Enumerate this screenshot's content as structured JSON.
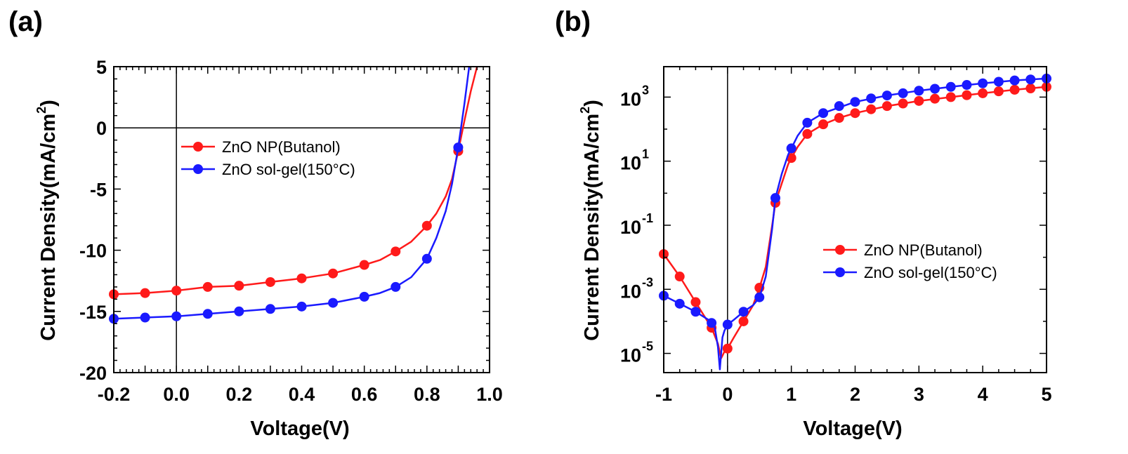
{
  "chart_data": [
    {
      "panel": "(a)",
      "type": "line",
      "xlabel": "Voltage(V)",
      "ylabel": "Current Density(mA/cm",
      "ylabel_sup": "2",
      "ylabel_tail": ")",
      "xlim": [
        -0.2,
        1.0
      ],
      "ylim": [
        -20,
        5
      ],
      "xticks": [
        "-0.2",
        "0.0",
        "0.2",
        "0.4",
        "0.6",
        "0.8",
        "1.0"
      ],
      "yticks": [
        "-20",
        "-15",
        "-10",
        "-5",
        "0",
        "5"
      ],
      "legend_position": "upper-middle",
      "series": [
        {
          "name": "ZnO NP(Butanol)",
          "color": "#ff1a1a",
          "marker_x": [
            -0.2,
            -0.1,
            0.0,
            0.1,
            0.2,
            0.3,
            0.4,
            0.5,
            0.6,
            0.7,
            0.8,
            0.9
          ],
          "marker_y": [
            -13.6,
            -13.5,
            -13.3,
            -13.0,
            -12.9,
            -12.6,
            -12.3,
            -11.9,
            -11.2,
            -10.1,
            -8.0,
            -1.9
          ],
          "curve_x": [
            -0.2,
            -0.1,
            0.0,
            0.1,
            0.2,
            0.3,
            0.4,
            0.5,
            0.6,
            0.65,
            0.7,
            0.75,
            0.8,
            0.83,
            0.86,
            0.88,
            0.9,
            0.92,
            0.94,
            0.96
          ],
          "curve_y": [
            -13.6,
            -13.5,
            -13.3,
            -13.0,
            -12.9,
            -12.6,
            -12.3,
            -11.9,
            -11.2,
            -10.8,
            -10.1,
            -9.3,
            -8.0,
            -7.0,
            -5.6,
            -4.2,
            -1.9,
            0.6,
            3.0,
            5.2
          ]
        },
        {
          "name": "ZnO sol-gel(150°C)",
          "color": "#1a1aff",
          "marker_x": [
            -0.2,
            -0.1,
            0.0,
            0.1,
            0.2,
            0.3,
            0.4,
            0.5,
            0.6,
            0.7,
            0.8,
            0.9
          ],
          "marker_y": [
            -15.6,
            -15.5,
            -15.4,
            -15.2,
            -15.0,
            -14.8,
            -14.6,
            -14.3,
            -13.8,
            -13.0,
            -10.7,
            -1.6
          ],
          "curve_x": [
            -0.2,
            -0.1,
            0.0,
            0.1,
            0.2,
            0.3,
            0.4,
            0.5,
            0.6,
            0.65,
            0.7,
            0.75,
            0.8,
            0.83,
            0.86,
            0.88,
            0.9,
            0.92,
            0.935
          ],
          "curve_y": [
            -15.6,
            -15.5,
            -15.4,
            -15.2,
            -15.0,
            -14.8,
            -14.6,
            -14.3,
            -13.8,
            -13.5,
            -13.0,
            -12.2,
            -10.7,
            -9.0,
            -6.8,
            -4.6,
            -1.6,
            2.0,
            5.2
          ]
        }
      ]
    },
    {
      "panel": "(b)",
      "type": "line",
      "yscale": "log",
      "xlabel": "Voltage(V)",
      "ylabel": "Current Density(mA/cm",
      "ylabel_sup": "2",
      "ylabel_tail": ")",
      "xlim": [
        -1,
        5
      ],
      "ylim_log10": [
        -5.6,
        3.95
      ],
      "xticks": [
        "-1",
        "0",
        "1",
        "2",
        "3",
        "4",
        "5"
      ],
      "yticks": [
        {
          "base": "10",
          "exp": "3",
          "log10": 3
        },
        {
          "base": "10",
          "exp": "1",
          "log10": 1
        },
        {
          "base": "10",
          "exp": "-1",
          "log10": -1
        },
        {
          "base": "10",
          "exp": "-3",
          "log10": -3
        },
        {
          "base": "10",
          "exp": "-5",
          "log10": -5
        }
      ],
      "legend_position": "lower-right",
      "series": [
        {
          "name": "ZnO NP(Butanol)",
          "color": "#ff1a1a",
          "marker_x": [
            -1.0,
            -0.75,
            -0.5,
            -0.25,
            0.0,
            0.25,
            0.5,
            0.75,
            1.0,
            1.25,
            1.5,
            1.75,
            2.0,
            2.25,
            2.5,
            2.75,
            3.0,
            3.25,
            3.5,
            3.75,
            4.0,
            4.25,
            4.5,
            4.75,
            5.0
          ],
          "marker_y_log10": [
            -1.9,
            -2.6,
            -3.4,
            -4.2,
            -4.85,
            -4.0,
            -2.95,
            -0.3,
            1.1,
            1.85,
            2.15,
            2.35,
            2.5,
            2.62,
            2.72,
            2.8,
            2.88,
            2.95,
            3.0,
            3.06,
            3.12,
            3.18,
            3.23,
            3.27,
            3.32
          ],
          "curve_x": [
            -1.0,
            -0.75,
            -0.5,
            -0.25,
            -0.15,
            -0.1,
            -0.05,
            0.0,
            0.1,
            0.25,
            0.4,
            0.5,
            0.6,
            0.7,
            0.75,
            0.85,
            0.95,
            1.0,
            1.1,
            1.25,
            1.5,
            1.75,
            2.0,
            2.5,
            3.0,
            3.5,
            4.0,
            4.5,
            5.0
          ],
          "curve_y_log10": [
            -1.9,
            -2.6,
            -3.4,
            -4.2,
            -4.7,
            -5.15,
            -4.95,
            -4.85,
            -4.5,
            -4.0,
            -3.5,
            -2.95,
            -2.3,
            -1.0,
            -0.3,
            0.3,
            0.9,
            1.1,
            1.45,
            1.85,
            2.15,
            2.35,
            2.5,
            2.72,
            2.88,
            3.0,
            3.12,
            3.23,
            3.32
          ]
        },
        {
          "name": "ZnO sol-gel(150°C)",
          "color": "#1a1aff",
          "marker_x": [
            -1.0,
            -0.75,
            -0.5,
            -0.25,
            0.0,
            0.25,
            0.5,
            0.75,
            1.0,
            1.25,
            1.5,
            1.75,
            2.0,
            2.25,
            2.5,
            2.75,
            3.0,
            3.25,
            3.5,
            3.75,
            4.0,
            4.25,
            4.5,
            4.75,
            5.0
          ],
          "marker_y_log10": [
            -3.2,
            -3.45,
            -3.7,
            -4.05,
            -4.1,
            -3.7,
            -3.25,
            -0.15,
            1.4,
            2.2,
            2.5,
            2.72,
            2.85,
            2.96,
            3.05,
            3.12,
            3.2,
            3.26,
            3.32,
            3.38,
            3.43,
            3.48,
            3.52,
            3.55,
            3.58
          ],
          "curve_x": [
            -1.0,
            -0.75,
            -0.5,
            -0.3,
            -0.25,
            -0.2,
            -0.15,
            -0.12,
            -0.08,
            -0.05,
            0.0,
            0.1,
            0.25,
            0.4,
            0.5,
            0.6,
            0.7,
            0.75,
            0.85,
            0.95,
            1.0,
            1.1,
            1.25,
            1.5,
            2.0,
            2.5,
            3.0,
            3.5,
            4.0,
            4.5,
            5.0
          ],
          "curve_y_log10": [
            -3.2,
            -3.45,
            -3.7,
            -3.95,
            -4.05,
            -4.2,
            -4.8,
            -5.5,
            -4.5,
            -4.3,
            -4.1,
            -3.95,
            -3.7,
            -3.5,
            -3.25,
            -2.6,
            -1.1,
            -0.15,
            0.6,
            1.2,
            1.4,
            1.8,
            2.2,
            2.5,
            2.85,
            3.05,
            3.2,
            3.32,
            3.43,
            3.52,
            3.58
          ]
        }
      ]
    }
  ]
}
